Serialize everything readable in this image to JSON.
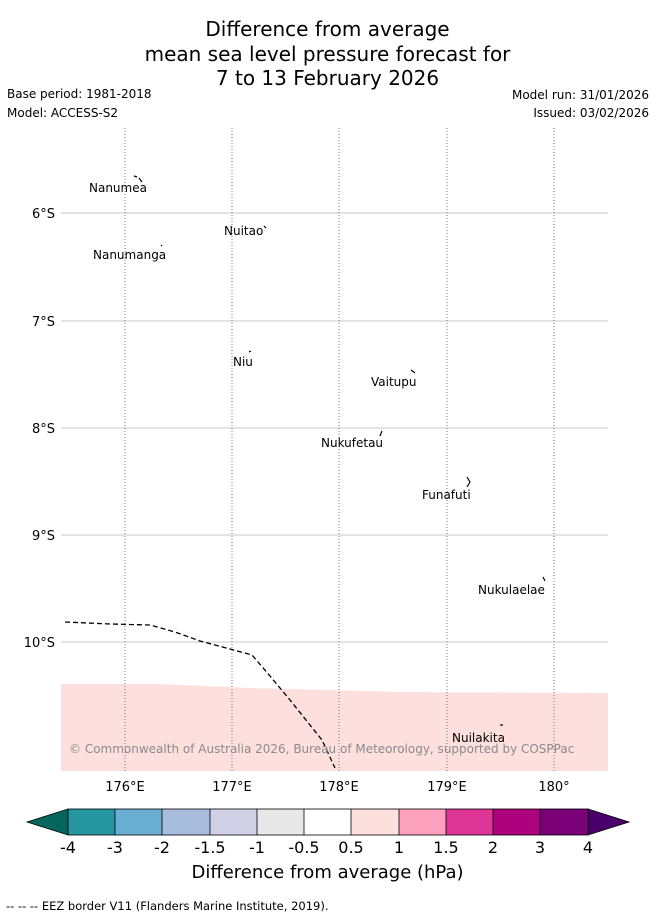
{
  "header": {
    "title_line1": "Difference from average",
    "title_line2": "mean sea level pressure forecast for",
    "title_line3": "7 to 13 February 2026",
    "base_period": "Base period: 1981-2018",
    "model": "Model: ACCESS-S2",
    "model_run": "Model run: 31/01/2026",
    "issued": "Issued: 03/02/2026"
  },
  "map": {
    "lat_labels": [
      "6°S",
      "7°S",
      "8°S",
      "9°S",
      "10°S"
    ],
    "lon_labels": [
      "176°E",
      "177°E",
      "178°E",
      "179°E",
      "180°"
    ],
    "places": [
      "Nanumea",
      "Nuitao",
      "Nanumanga",
      "Niu",
      "Vaitupu",
      "Nukufetau",
      "Funafuti",
      "Nukulaelae",
      "Nuilakita"
    ],
    "anomaly_band_value": "0.5 to 1",
    "credit": "© Commonwealth of Australia 2026, Bureau of Meteorology, supported by COSPPac"
  },
  "colorbar": {
    "ticks": [
      "-4",
      "-3",
      "-2",
      "-1.5",
      "-1",
      "-0.5",
      "0.5",
      "1",
      "1.5",
      "2",
      "3",
      "4"
    ],
    "colors": [
      "#04665c",
      "#2596a0",
      "#6aaed3",
      "#a8bcdd",
      "#d0d1e6",
      "#e8e8e8",
      "#ffffff",
      "#fde0de",
      "#fba0bd",
      "#dd3596",
      "#ae017e",
      "#7a0177",
      "#49006a"
    ],
    "title": "Difference from average (hPa)"
  },
  "footnote": "-- -- -- EEZ border V11 (Flanders Marine Institute, 2019)."
}
